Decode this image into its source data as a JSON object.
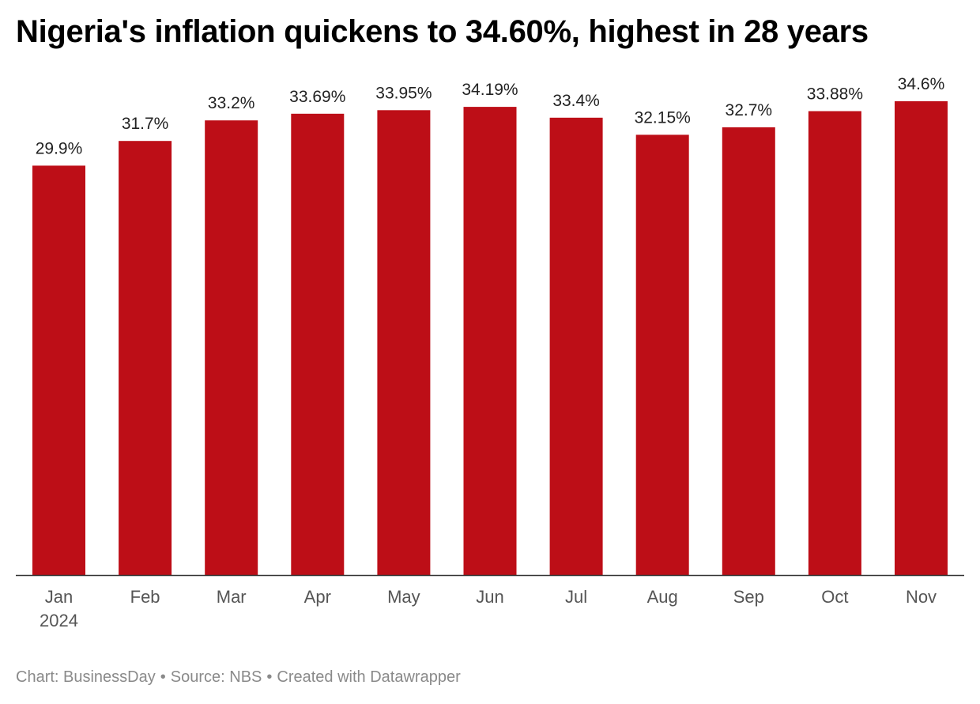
{
  "title": "Nigeria's inflation quickens to 34.60%, highest in 28 years",
  "footer": {
    "chart_credit": "Chart: BusinessDay",
    "source": "Source: NBS",
    "created_with": "Created with Datawrapper",
    "separator": "•"
  },
  "colors": {
    "bar": "#bd0e17",
    "axis": "#333333"
  },
  "chart_data": {
    "type": "bar",
    "title": "Nigeria's inflation quickens to 34.60%, highest in 28 years",
    "categories": [
      "Jan",
      "Feb",
      "Mar",
      "Apr",
      "May",
      "Jun",
      "Jul",
      "Aug",
      "Sep",
      "Oct",
      "Nov"
    ],
    "category_sublabels": [
      "2024",
      "",
      "",
      "",
      "",
      "",
      "",
      "",
      "",
      "",
      ""
    ],
    "values": [
      29.9,
      31.7,
      33.2,
      33.69,
      33.95,
      34.19,
      33.4,
      32.15,
      32.7,
      33.88,
      34.6
    ],
    "value_labels": [
      "29.9%",
      "31.7%",
      "33.2%",
      "33.69%",
      "33.95%",
      "34.19%",
      "33.4%",
      "32.15%",
      "32.7%",
      "33.88%",
      "34.6%"
    ],
    "xlabel": "",
    "ylabel": "",
    "ylim": [
      0,
      34.6
    ],
    "grid": false,
    "legend": "none"
  }
}
